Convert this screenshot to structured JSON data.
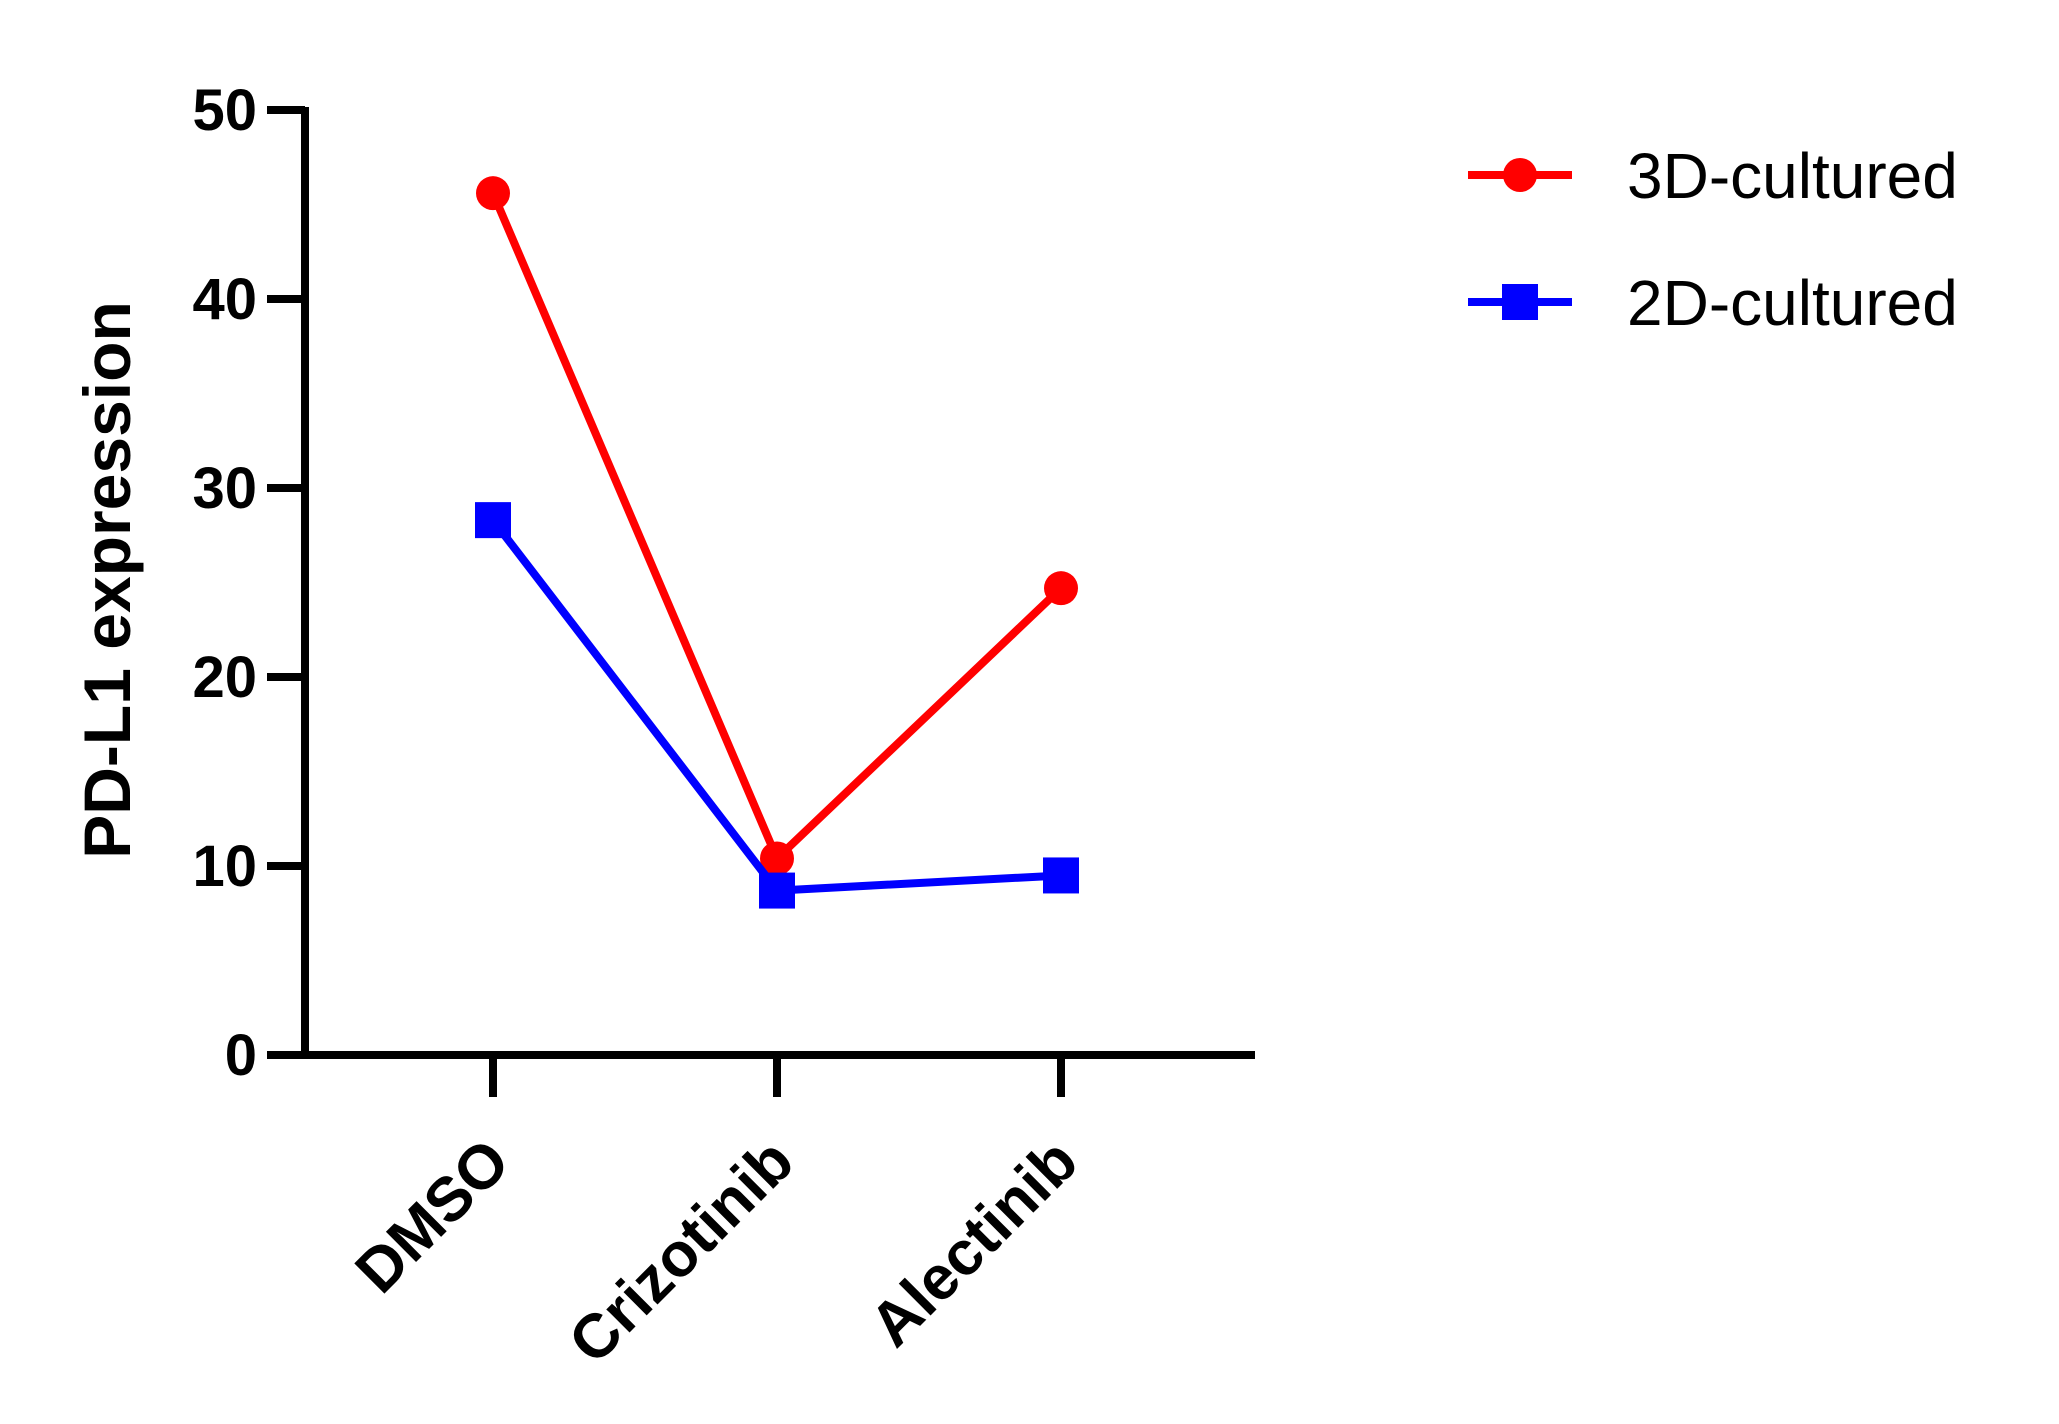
{
  "chart_data": {
    "type": "line",
    "categories": [
      "DMSO",
      "Crizotinib",
      "Alectinib"
    ],
    "series": [
      {
        "name": "3D-cultured",
        "values": [
          45.6,
          10.4,
          24.7
        ],
        "color": "#ff0000",
        "marker": "circle"
      },
      {
        "name": "2D-cultured",
        "values": [
          28.3,
          8.7,
          9.5
        ],
        "color": "#0000ff",
        "marker": "square"
      }
    ],
    "title": "",
    "xlabel": "",
    "ylabel": "PD-L1 expression",
    "ylim": [
      0,
      50
    ],
    "yticks": [
      0,
      10,
      20,
      30,
      40,
      50
    ],
    "grid": false,
    "legend_position": "top-right"
  }
}
